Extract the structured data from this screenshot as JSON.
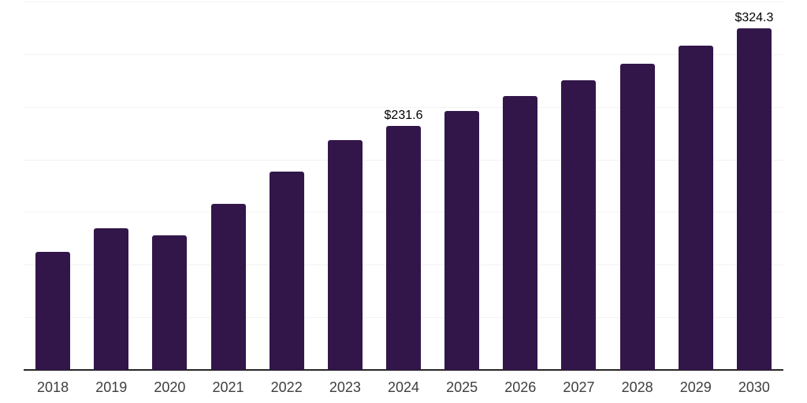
{
  "chart_data": {
    "type": "bar",
    "title": "",
    "xlabel": "",
    "ylabel": "",
    "categories": [
      "2018",
      "2019",
      "2020",
      "2021",
      "2022",
      "2023",
      "2024",
      "2025",
      "2026",
      "2027",
      "2028",
      "2029",
      "2030"
    ],
    "values": [
      112.5,
      134.5,
      127.8,
      157.8,
      188.5,
      218.4,
      231.6,
      245.8,
      260.0,
      275.2,
      291.2,
      307.9,
      324.3
    ],
    "value_labels": [
      {
        "category": "2024",
        "text": "$231.6"
      },
      {
        "category": "2030",
        "text": "$324.3"
      }
    ],
    "ylim": [
      0,
      350
    ],
    "grid_step": 50,
    "grid": true,
    "legend": false,
    "colors": {
      "bar": "#32164a",
      "axis": "#262626",
      "gridline": "#f2f2f4",
      "tick_label": "#3e3e3e",
      "value_label": "#000000",
      "background": "#ffffff"
    }
  }
}
